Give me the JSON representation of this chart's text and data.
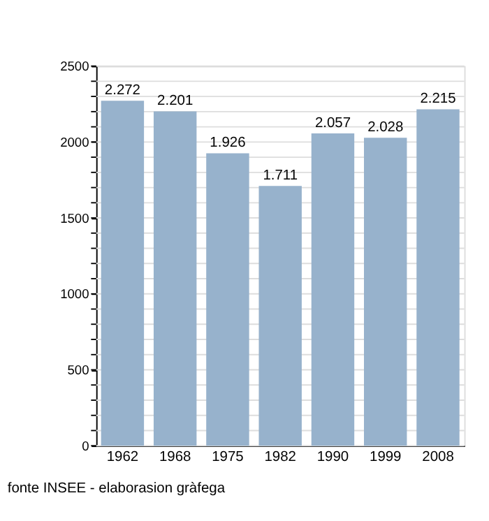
{
  "chart_data": {
    "type": "bar",
    "categories": [
      "1962",
      "1968",
      "1975",
      "1982",
      "1990",
      "1999",
      "2008"
    ],
    "values": [
      2272,
      2201,
      1926,
      1711,
      2057,
      2028,
      2215
    ],
    "value_labels": [
      "2.272",
      "2.201",
      "1.926",
      "1.711",
      "2.057",
      "2.028",
      "2.215"
    ],
    "color": "#97b2cc",
    "ylim": [
      0,
      2500
    ],
    "yticks": [
      0,
      {
        "value": 100,
        "label": null
      },
      {
        "value": 200,
        "label": null
      },
      {
        "value": 300,
        "label": null
      },
      {
        "value": 400,
        "label": null
      },
      500,
      {
        "value": 600,
        "label": null
      },
      {
        "value": 700,
        "label": null
      },
      {
        "value": 800,
        "label": null
      },
      {
        "value": 900,
        "label": null
      },
      1000,
      {
        "value": 1100,
        "label": null
      },
      {
        "value": 1200,
        "label": null
      },
      {
        "value": 1300,
        "label": null
      },
      {
        "value": 1400,
        "label": null
      },
      1500,
      {
        "value": 1600,
        "label": null
      },
      {
        "value": 1700,
        "label": null
      },
      {
        "value": 1800,
        "label": null
      },
      {
        "value": 1900,
        "label": null
      },
      2000,
      {
        "value": 2100,
        "label": null
      },
      {
        "value": 2200,
        "label": null
      },
      {
        "value": 2300,
        "label": null
      },
      {
        "value": 2400,
        "label": null
      },
      2500
    ],
    "grid": "y",
    "annotations": [
      "fonte INSEE - elaborasion gràfega"
    ]
  }
}
